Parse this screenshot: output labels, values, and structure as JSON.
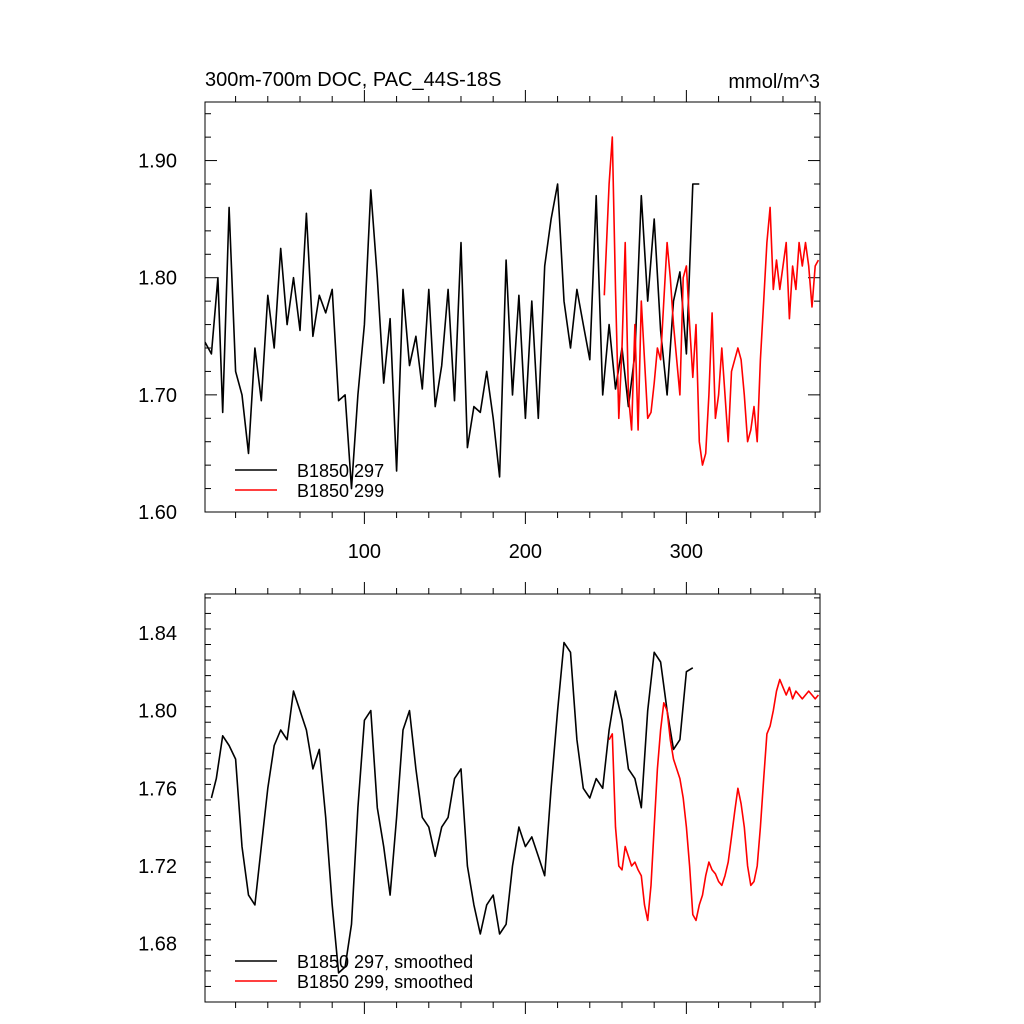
{
  "chart_data": [
    {
      "type": "line",
      "title": "300m-700m DOC, PAC_44S-18S",
      "units": "mmol/m^3",
      "xlabel": "",
      "ylabel": "",
      "xlim": [
        1,
        383
      ],
      "ylim": [
        1.6,
        1.95
      ],
      "x_ticks": [
        100,
        200,
        300
      ],
      "y_ticks": [
        "1.60",
        "1.70",
        "1.80",
        "1.90"
      ],
      "x_tick_labels_visible": true,
      "legend_position": "bottom-left",
      "series": [
        {
          "name": "B1850 297",
          "color": "#000000",
          "x": [
            1,
            5,
            9,
            12,
            16,
            20,
            24,
            28,
            32,
            36,
            40,
            44,
            48,
            52,
            56,
            60,
            64,
            68,
            72,
            76,
            80,
            84,
            88,
            92,
            96,
            100,
            104,
            108,
            112,
            116,
            120,
            124,
            128,
            132,
            136,
            140,
            144,
            148,
            152,
            156,
            160,
            164,
            168,
            172,
            176,
            180,
            184,
            188,
            192,
            196,
            200,
            204,
            208,
            212,
            216,
            220,
            224,
            228,
            232,
            236,
            240,
            244,
            248,
            252,
            256,
            260,
            264,
            268,
            272,
            276,
            280,
            284,
            288,
            292,
            296,
            300,
            304,
            308
          ],
          "y": [
            1.745,
            1.735,
            1.8,
            1.685,
            1.86,
            1.72,
            1.7,
            1.65,
            1.74,
            1.695,
            1.785,
            1.74,
            1.825,
            1.76,
            1.8,
            1.755,
            1.855,
            1.75,
            1.785,
            1.77,
            1.79,
            1.695,
            1.7,
            1.62,
            1.7,
            1.76,
            1.875,
            1.8,
            1.71,
            1.765,
            1.635,
            1.79,
            1.725,
            1.75,
            1.705,
            1.79,
            1.69,
            1.725,
            1.79,
            1.695,
            1.83,
            1.655,
            1.69,
            1.685,
            1.72,
            1.68,
            1.63,
            1.815,
            1.7,
            1.785,
            1.68,
            1.78,
            1.68,
            1.81,
            1.85,
            1.88,
            1.78,
            1.74,
            1.79,
            1.76,
            1.73,
            1.87,
            1.7,
            1.76,
            1.705,
            1.74,
            1.69,
            1.735,
            1.87,
            1.78,
            1.85,
            1.755,
            1.7,
            1.78,
            1.805,
            1.735,
            1.88,
            1.88
          ]
        },
        {
          "name": "B1850 299",
          "color": "#ff0000",
          "x": [
            249,
            252,
            254,
            256,
            258,
            260,
            262,
            264,
            266,
            268,
            270,
            272,
            274,
            276,
            278,
            280,
            282,
            284,
            286,
            288,
            290,
            292,
            294,
            296,
            298,
            300,
            302,
            304,
            306,
            308,
            310,
            312,
            314,
            316,
            318,
            320,
            322,
            324,
            326,
            328,
            330,
            332,
            334,
            336,
            338,
            340,
            342,
            344,
            346,
            348,
            350,
            352,
            354,
            356,
            358,
            360,
            362,
            364,
            366,
            368,
            370,
            372,
            374,
            376,
            378,
            380,
            382
          ],
          "y": [
            1.785,
            1.88,
            1.92,
            1.79,
            1.68,
            1.74,
            1.83,
            1.7,
            1.67,
            1.76,
            1.67,
            1.78,
            1.73,
            1.68,
            1.685,
            1.71,
            1.74,
            1.73,
            1.78,
            1.83,
            1.8,
            1.76,
            1.73,
            1.7,
            1.8,
            1.81,
            1.76,
            1.715,
            1.76,
            1.66,
            1.64,
            1.65,
            1.7,
            1.77,
            1.68,
            1.7,
            1.74,
            1.7,
            1.66,
            1.72,
            1.73,
            1.74,
            1.73,
            1.7,
            1.66,
            1.67,
            1.69,
            1.66,
            1.73,
            1.78,
            1.83,
            1.86,
            1.79,
            1.815,
            1.79,
            1.81,
            1.83,
            1.765,
            1.81,
            1.79,
            1.83,
            1.81,
            1.83,
            1.81,
            1.775,
            1.81,
            1.815
          ]
        }
      ]
    },
    {
      "type": "line",
      "title": "",
      "xlabel": "",
      "ylabel": "",
      "xlim": [
        1,
        383
      ],
      "ylim": [
        1.65,
        1.86
      ],
      "x_ticks": [
        100,
        200,
        300
      ],
      "y_ticks": [
        "1.68",
        "1.72",
        "1.76",
        "1.80",
        "1.84"
      ],
      "x_tick_labels_visible": false,
      "legend_position": "bottom-left",
      "series": [
        {
          "name": "B1850 297, smoothed",
          "color": "#000000",
          "x": [
            5,
            8,
            12,
            16,
            20,
            24,
            28,
            32,
            36,
            40,
            44,
            48,
            52,
            56,
            60,
            64,
            68,
            72,
            76,
            80,
            84,
            88,
            92,
            96,
            100,
            104,
            108,
            112,
            116,
            120,
            124,
            128,
            132,
            136,
            140,
            144,
            148,
            152,
            156,
            160,
            164,
            168,
            172,
            176,
            180,
            184,
            188,
            192,
            196,
            200,
            204,
            208,
            212,
            216,
            220,
            224,
            228,
            232,
            236,
            240,
            244,
            248,
            252,
            256,
            260,
            264,
            268,
            272,
            276,
            280,
            284,
            288,
            292,
            296,
            300,
            304
          ],
          "y": [
            1.755,
            1.765,
            1.787,
            1.782,
            1.775,
            1.73,
            1.705,
            1.7,
            1.73,
            1.76,
            1.782,
            1.79,
            1.785,
            1.81,
            1.8,
            1.79,
            1.77,
            1.78,
            1.745,
            1.7,
            1.665,
            1.668,
            1.69,
            1.75,
            1.795,
            1.8,
            1.75,
            1.73,
            1.705,
            1.745,
            1.79,
            1.8,
            1.77,
            1.745,
            1.74,
            1.725,
            1.74,
            1.745,
            1.765,
            1.77,
            1.72,
            1.7,
            1.685,
            1.7,
            1.705,
            1.685,
            1.69,
            1.72,
            1.74,
            1.73,
            1.735,
            1.725,
            1.715,
            1.76,
            1.8,
            1.835,
            1.83,
            1.785,
            1.76,
            1.755,
            1.765,
            1.76,
            1.79,
            1.81,
            1.795,
            1.77,
            1.765,
            1.75,
            1.8,
            1.83,
            1.825,
            1.8,
            1.78,
            1.785,
            1.82,
            1.822
          ]
        },
        {
          "name": "B1850 299, smoothed",
          "color": "#ff0000",
          "x": [
            252,
            254,
            256,
            258,
            260,
            262,
            264,
            266,
            268,
            270,
            272,
            274,
            276,
            278,
            280,
            282,
            284,
            286,
            288,
            290,
            292,
            294,
            296,
            298,
            300,
            302,
            304,
            306,
            308,
            310,
            312,
            314,
            316,
            318,
            320,
            322,
            324,
            326,
            328,
            330,
            332,
            334,
            336,
            338,
            340,
            342,
            344,
            346,
            348,
            350,
            352,
            354,
            356,
            358,
            360,
            362,
            364,
            366,
            368,
            370,
            372,
            374,
            376,
            378,
            380,
            382
          ],
          "y": [
            1.785,
            1.788,
            1.74,
            1.72,
            1.718,
            1.73,
            1.725,
            1.72,
            1.722,
            1.718,
            1.715,
            1.7,
            1.692,
            1.71,
            1.74,
            1.77,
            1.79,
            1.804,
            1.8,
            1.785,
            1.775,
            1.77,
            1.765,
            1.755,
            1.74,
            1.72,
            1.695,
            1.692,
            1.7,
            1.705,
            1.715,
            1.722,
            1.718,
            1.716,
            1.712,
            1.71,
            1.715,
            1.722,
            1.735,
            1.748,
            1.76,
            1.752,
            1.74,
            1.72,
            1.71,
            1.712,
            1.72,
            1.74,
            1.765,
            1.788,
            1.792,
            1.8,
            1.81,
            1.816,
            1.812,
            1.808,
            1.812,
            1.806,
            1.81,
            1.808,
            1.806,
            1.808,
            1.81,
            1.808,
            1.806,
            1.808
          ]
        }
      ]
    }
  ]
}
